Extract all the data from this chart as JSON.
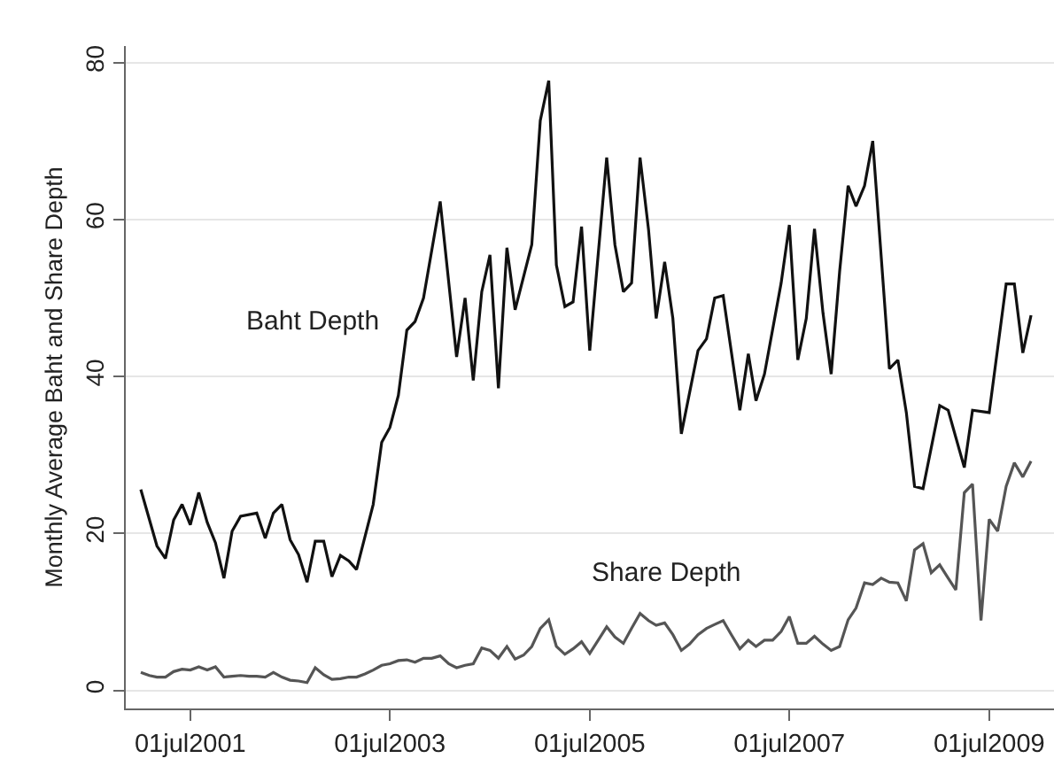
{
  "chart_data": {
    "type": "line",
    "ylabel": "Monthly Average Baht and Share Depth",
    "xlim": [
      "2000-11-07",
      "2010-02-23"
    ],
    "ylim": [
      -2.3,
      82.1
    ],
    "xticks": [
      {
        "value": "2001-07-01",
        "label": "01jul2001"
      },
      {
        "value": "2003-07-01",
        "label": "01jul2003"
      },
      {
        "value": "2005-07-01",
        "label": "01jul2005"
      },
      {
        "value": "2007-07-01",
        "label": "01jul2007"
      },
      {
        "value": "2009-07-01",
        "label": "01jul2009"
      }
    ],
    "yticks": [
      0,
      20,
      40,
      60,
      80
    ],
    "grid": "y",
    "series": [
      {
        "name": "Baht Depth",
        "color": "#111111",
        "x": [
          "2001-01",
          "2001-03",
          "2001-04",
          "2001-05",
          "2001-06",
          "2001-07",
          "2001-08",
          "2001-09",
          "2001-10",
          "2001-11",
          "2001-12",
          "2002-01",
          "2002-03",
          "2002-04",
          "2002-05",
          "2002-06",
          "2002-07",
          "2002-08",
          "2002-09",
          "2002-10",
          "2002-11",
          "2002-12",
          "2003-01",
          "2003-02",
          "2003-03",
          "2003-04",
          "2003-05",
          "2003-06",
          "2003-07",
          "2003-08",
          "2003-09",
          "2003-10",
          "2003-11",
          "2004-01",
          "2004-03",
          "2004-04",
          "2004-05",
          "2004-06",
          "2004-07",
          "2004-08",
          "2004-09",
          "2004-10",
          "2004-12",
          "2005-01",
          "2005-02",
          "2005-03",
          "2005-04",
          "2005-05",
          "2005-06",
          "2005-07",
          "2005-09",
          "2005-10",
          "2005-11",
          "2005-12",
          "2006-01",
          "2006-02",
          "2006-03",
          "2006-04",
          "2006-05",
          "2006-06",
          "2006-08",
          "2006-09",
          "2006-10",
          "2006-11",
          "2007-01",
          "2007-02",
          "2007-03",
          "2007-04",
          "2007-06",
          "2007-07",
          "2007-08",
          "2007-09",
          "2007-10",
          "2007-11",
          "2007-12",
          "2008-01",
          "2008-02",
          "2008-03",
          "2008-04",
          "2008-05",
          "2008-07",
          "2008-08",
          "2008-09",
          "2008-10",
          "2008-11",
          "2009-01",
          "2009-02",
          "2009-04",
          "2009-05",
          "2009-07",
          "2009-09",
          "2009-10",
          "2009-11",
          "2009-12"
        ],
        "values": [
          25.6,
          18.4,
          16.8,
          21.7,
          23.7,
          21.1,
          25.2,
          21.4,
          18.8,
          14.3,
          20.3,
          22.2,
          22.6,
          19.4,
          22.6,
          23.7,
          19.2,
          17.3,
          13.8,
          19.0,
          19.0,
          14.5,
          17.2,
          16.5,
          15.4,
          19.6,
          23.7,
          31.6,
          33.5,
          37.6,
          45.9,
          47.0,
          50.0,
          62.3,
          42.5,
          50.0,
          39.5,
          50.8,
          55.5,
          38.5,
          56.4,
          48.5,
          56.8,
          72.6,
          77.7,
          54.2,
          48.9,
          49.5,
          59.1,
          43.3,
          67.9,
          56.8,
          50.8,
          51.9,
          67.9,
          58.7,
          47.4,
          54.6,
          47.4,
          32.7,
          43.3,
          44.8,
          50.0,
          50.3,
          35.7,
          42.9,
          36.9,
          40.3,
          51.9,
          59.3,
          42.1,
          47.4,
          58.8,
          48.1,
          40.3,
          53.4,
          64.3,
          61.7,
          64.3,
          70.0,
          41.0,
          42.1,
          35.4,
          26.0,
          25.7,
          36.3,
          35.7,
          28.4,
          35.7,
          35.4,
          51.8,
          51.8,
          43.0,
          47.8
        ]
      },
      {
        "name": "Share Depth",
        "color": "#555555",
        "x": [
          "2001-01",
          "2001-02",
          "2001-03",
          "2001-04",
          "2001-05",
          "2001-06",
          "2001-07",
          "2001-08",
          "2001-09",
          "2001-10",
          "2001-11",
          "2001-12",
          "2002-01",
          "2002-02",
          "2002-03",
          "2002-04",
          "2002-05",
          "2002-06",
          "2002-07",
          "2002-08",
          "2002-09",
          "2002-10",
          "2002-11",
          "2002-12",
          "2003-01",
          "2003-02",
          "2003-03",
          "2003-04",
          "2003-05",
          "2003-06",
          "2003-07",
          "2003-08",
          "2003-09",
          "2003-10",
          "2003-11",
          "2003-12",
          "2004-01",
          "2004-02",
          "2004-03",
          "2004-04",
          "2004-05",
          "2004-06",
          "2004-07",
          "2004-08",
          "2004-09",
          "2004-10",
          "2004-11",
          "2004-12",
          "2005-01",
          "2005-02",
          "2005-03",
          "2005-04",
          "2005-05",
          "2005-06",
          "2005-07",
          "2005-08",
          "2005-09",
          "2005-10",
          "2005-11",
          "2005-12",
          "2006-01",
          "2006-02",
          "2006-03",
          "2006-04",
          "2006-05",
          "2006-06",
          "2006-07",
          "2006-08",
          "2006-09",
          "2006-10",
          "2006-11",
          "2006-12",
          "2007-01",
          "2007-02",
          "2007-03",
          "2007-04",
          "2007-05",
          "2007-06",
          "2007-07",
          "2007-08",
          "2007-09",
          "2007-10",
          "2007-11",
          "2007-12",
          "2008-01",
          "2008-02",
          "2008-03",
          "2008-04",
          "2008-05",
          "2008-06",
          "2008-07",
          "2008-08",
          "2008-09",
          "2008-10",
          "2008-11",
          "2008-12",
          "2009-01",
          "2009-02",
          "2009-03",
          "2009-04",
          "2009-05",
          "2009-06",
          "2009-07",
          "2009-08",
          "2009-09",
          "2009-10",
          "2009-11",
          "2009-12"
        ],
        "values": [
          2.3,
          1.9,
          1.7,
          1.7,
          2.4,
          2.7,
          2.6,
          3.0,
          2.6,
          3.0,
          1.7,
          1.8,
          1.9,
          1.8,
          1.8,
          1.7,
          2.3,
          1.7,
          1.3,
          1.2,
          1.0,
          2.9,
          2.0,
          1.4,
          1.5,
          1.7,
          1.7,
          2.1,
          2.6,
          3.2,
          3.4,
          3.8,
          3.9,
          3.6,
          4.1,
          4.1,
          4.4,
          3.4,
          2.9,
          3.2,
          3.4,
          5.4,
          5.1,
          4.1,
          5.6,
          4.0,
          4.5,
          5.6,
          7.9,
          9.0,
          5.6,
          4.6,
          5.3,
          6.2,
          4.7,
          6.4,
          8.1,
          6.8,
          6.0,
          7.9,
          9.8,
          8.9,
          8.3,
          8.6,
          7.1,
          5.1,
          5.9,
          7.1,
          7.9,
          8.4,
          8.9,
          7.1,
          5.3,
          6.4,
          5.6,
          6.4,
          6.4,
          7.5,
          9.4,
          6.0,
          6.0,
          6.9,
          5.9,
          5.1,
          5.6,
          9.0,
          10.5,
          13.7,
          13.5,
          14.3,
          13.8,
          13.7,
          11.4,
          17.9,
          18.7,
          15.0,
          16.0,
          14.3,
          12.8,
          25.2,
          26.3,
          8.9,
          21.8,
          20.3,
          26.0,
          29.0,
          27.2,
          29.2
        ]
      }
    ]
  }
}
